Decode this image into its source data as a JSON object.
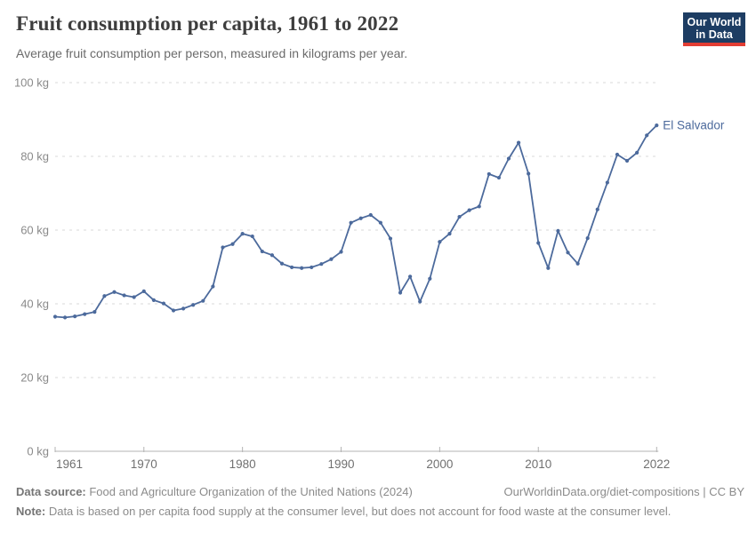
{
  "header": {
    "title": "Fruit consumption per capita, 1961 to 2022",
    "subtitle": "Average fruit consumption per person, measured in kilograms per year."
  },
  "logo": {
    "line1": "Our World",
    "line2": "in Data"
  },
  "chart_data": {
    "type": "line",
    "title": "Fruit consumption per capita, 1961 to 2022",
    "xlabel": "",
    "ylabel": "kg",
    "xlim": [
      1961,
      2022
    ],
    "ylim": [
      0,
      100
    ],
    "grid": "horizontal-dashed",
    "legend_position": "end-of-line-label",
    "x_ticks": [
      1961,
      1970,
      1980,
      1990,
      2000,
      2010,
      2022
    ],
    "y_ticks": [
      0,
      20,
      40,
      60,
      80,
      100
    ],
    "y_tick_suffix": " kg",
    "series": [
      {
        "name": "El Salvador",
        "x": [
          1961,
          1962,
          1963,
          1964,
          1965,
          1966,
          1967,
          1968,
          1969,
          1970,
          1971,
          1972,
          1973,
          1974,
          1975,
          1976,
          1977,
          1978,
          1979,
          1980,
          1981,
          1982,
          1983,
          1984,
          1985,
          1986,
          1987,
          1988,
          1989,
          1990,
          1991,
          1992,
          1993,
          1994,
          1995,
          1996,
          1997,
          1998,
          1999,
          2000,
          2001,
          2002,
          2003,
          2004,
          2005,
          2006,
          2007,
          2008,
          2009,
          2010,
          2011,
          2012,
          2013,
          2014,
          2015,
          2016,
          2017,
          2018,
          2019,
          2020,
          2021,
          2022
        ],
        "values": [
          36.5,
          36.3,
          36.6,
          37.2,
          37.8,
          42.1,
          43.2,
          42.3,
          41.8,
          43.4,
          41.0,
          40.1,
          38.2,
          38.7,
          39.7,
          40.8,
          44.7,
          55.3,
          56.2,
          59.0,
          58.3,
          54.2,
          53.2,
          50.9,
          49.9,
          49.7,
          49.9,
          50.8,
          52.1,
          54.1,
          62.0,
          63.2,
          64.1,
          62.0,
          57.7,
          43.0,
          47.4,
          40.6,
          46.8,
          56.8,
          59.0,
          63.6,
          65.4,
          66.4,
          75.2,
          74.2,
          79.4,
          83.7,
          75.3,
          56.5,
          49.7,
          59.8,
          53.9,
          50.9,
          57.8,
          65.6,
          72.9,
          80.5,
          78.8,
          81.0,
          85.7,
          88.4
        ]
      }
    ]
  },
  "colors": {
    "line": "#4c6a9c",
    "series_label": "#4c6a9c",
    "grid": "#dadada",
    "axis": "#b3b3b3",
    "y_tick_text": "#8a8a8a",
    "x_tick_text": "#707070",
    "logo_bg": "#1d3d63",
    "logo_accent": "#e23d33"
  },
  "footer": {
    "source_label": "Data source:",
    "source_text": " Food and Agriculture Organization of the United Nations (2024)",
    "link_text": "OurWorldinData.org/diet-compositions | CC BY",
    "note_label": "Note:",
    "note_text": " Data is based on per capita food supply at the consumer level, but does not account for food waste at the consumer level."
  }
}
